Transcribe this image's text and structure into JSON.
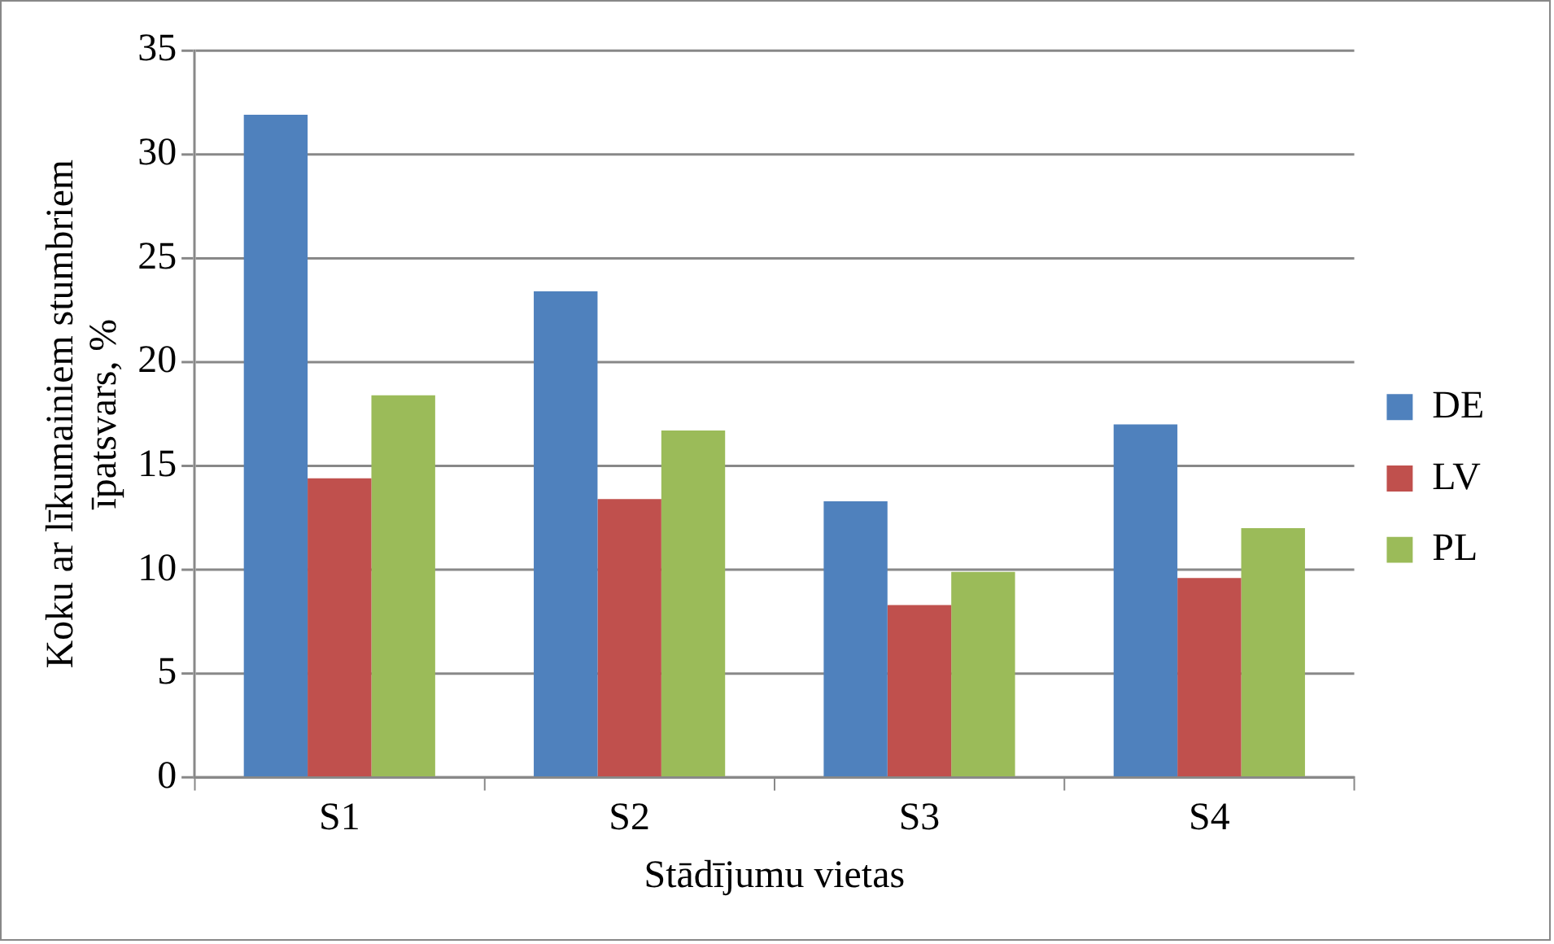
{
  "chart_data": {
    "type": "bar",
    "xlabel": "Stādījumu vietas",
    "ylabel": "Koku ar līkumainiem stumbriem īpatsvars, %",
    "categories": [
      "S1",
      "S2",
      "S3",
      "S4"
    ],
    "series": [
      {
        "name": "DE",
        "color": "#4f81bd",
        "values": [
          31.9,
          23.4,
          13.3,
          17.0
        ]
      },
      {
        "name": "LV",
        "color": "#c0504d",
        "values": [
          14.4,
          13.4,
          8.3,
          9.6
        ]
      },
      {
        "name": "PL",
        "color": "#9bbb59",
        "values": [
          18.4,
          16.7,
          9.9,
          12.0
        ]
      }
    ],
    "ylim": [
      0,
      35
    ],
    "yticks": [
      0,
      5,
      10,
      15,
      20,
      25,
      30,
      35
    ],
    "grid": "y",
    "legend": "right"
  }
}
